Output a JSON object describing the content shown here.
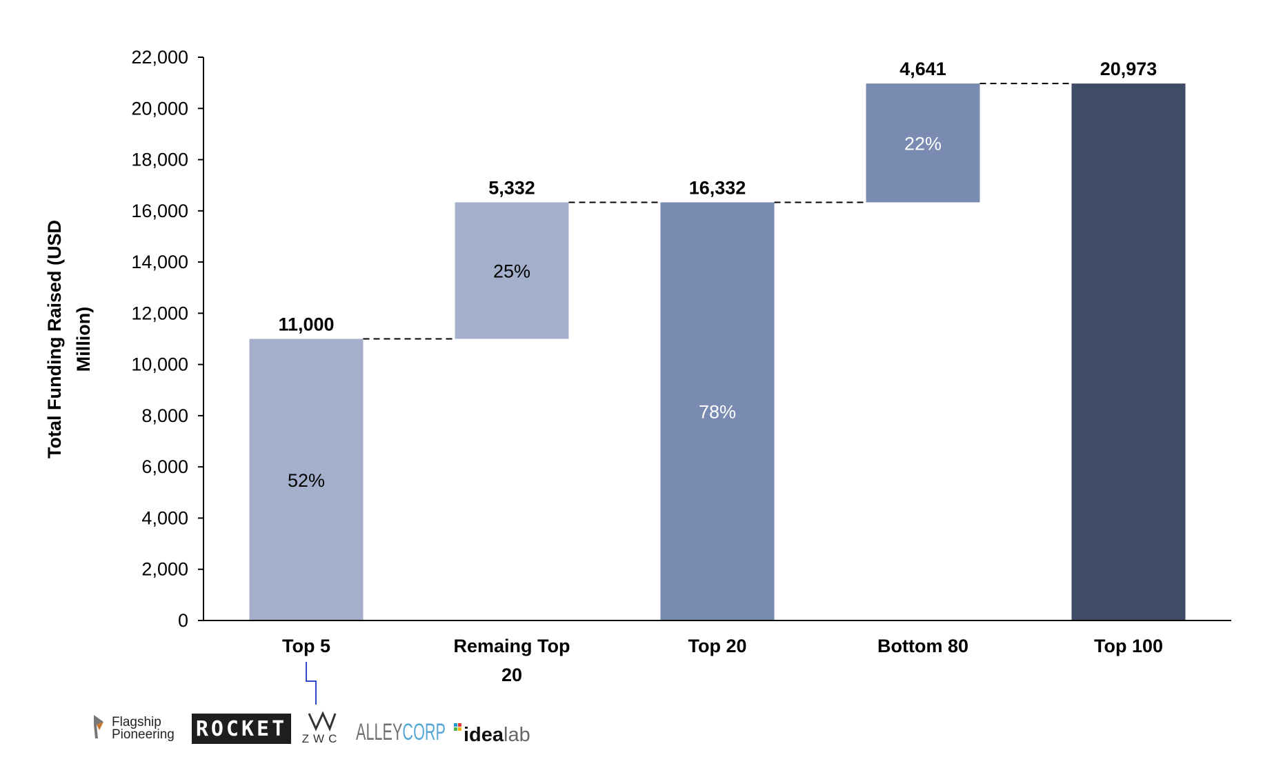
{
  "chart_data": {
    "type": "bar",
    "subtype": "waterfall",
    "categories": [
      [
        "Top 5"
      ],
      [
        "Remaing Top",
        "20"
      ],
      [
        "Top 20"
      ],
      [
        "Bottom 80"
      ],
      [
        "Top 100"
      ]
    ],
    "bars": [
      {
        "base": 0,
        "value": 11000,
        "label": "11,000",
        "pct": "52%",
        "color": "#a4b0cb",
        "pct_color": "#000000"
      },
      {
        "base": 11000,
        "value": 5332,
        "label": "5,332",
        "pct": "25%",
        "color": "#a4b0cb",
        "pct_color": "#000000"
      },
      {
        "base": 0,
        "value": 16332,
        "label": "16,332",
        "pct": "78%",
        "color": "#7a8bb2",
        "pct_color": "#ffffff"
      },
      {
        "base": 16332,
        "value": 4641,
        "label": "4,641",
        "pct": "22%",
        "color": "#7a8bb2",
        "pct_color": "#ffffff"
      },
      {
        "base": 0,
        "value": 20973,
        "label": "20,973",
        "pct": "",
        "color": "#3e4c68",
        "pct_color": "#ffffff"
      }
    ],
    "ylabel": [
      "Total Funding Raised (USD",
      "Million)"
    ],
    "ylim": [
      0,
      22000
    ],
    "yticks": [
      0,
      2000,
      4000,
      6000,
      8000,
      10000,
      12000,
      14000,
      16000,
      18000,
      20000,
      22000
    ],
    "ytick_labels": [
      "0",
      "2,000",
      "4,000",
      "6,000",
      "8,000",
      "10,000",
      "12,000",
      "14,000",
      "16,000",
      "18,000",
      "20,000",
      "22,000"
    ],
    "connector_lines": "dashed",
    "grid": false
  },
  "logos": [
    {
      "name": "Flagship Pioneering",
      "lines": [
        "Flagship",
        "Pioneering"
      ]
    },
    {
      "name": "ROCKET",
      "text": "ROCKET"
    },
    {
      "name": "ZWC",
      "text": "ZWC"
    },
    {
      "name": "AlleyCorp",
      "part1": "ALLEY",
      "part2": "CORP"
    },
    {
      "name": "idealab",
      "part1": "idea",
      "part2": "lab"
    }
  ],
  "colors": {
    "axis": "#000000",
    "callout_line": "#2b4acb"
  }
}
